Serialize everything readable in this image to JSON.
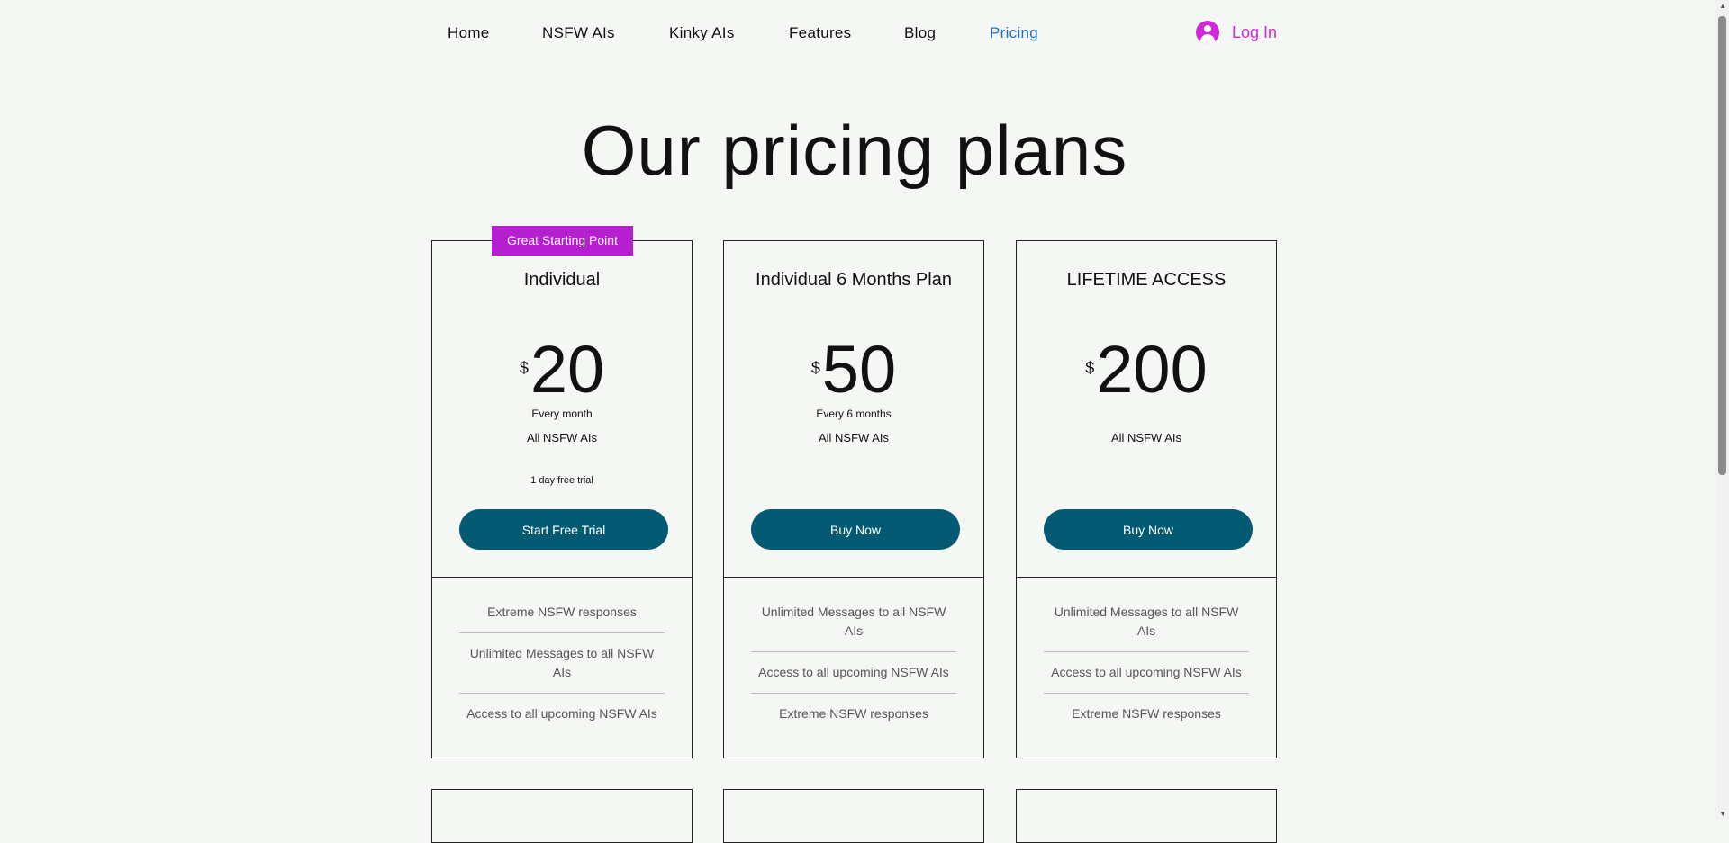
{
  "nav": {
    "items": [
      {
        "label": "Home"
      },
      {
        "label": "NSFW AIs"
      },
      {
        "label": "Kinky AIs"
      },
      {
        "label": "Features"
      },
      {
        "label": "Blog"
      },
      {
        "label": "Pricing",
        "active": true
      }
    ],
    "login_label": "Log In",
    "accent": "#d02ad8"
  },
  "title": "Our pricing plans",
  "badge": "Great Starting Point",
  "plans": [
    {
      "name": "Individual",
      "currency": "$",
      "price": "20",
      "frequency": "Every month",
      "description": "All NSFW AIs",
      "note": "1 day free trial",
      "button": "Start Free Trial",
      "features": [
        "Extreme NSFW responses",
        "Unlimited Messages to all NSFW AIs",
        "Access to all upcoming NSFW AIs"
      ]
    },
    {
      "name": "Individual 6 Months Plan",
      "currency": "$",
      "price": "50",
      "frequency": "Every 6 months",
      "description": "All NSFW AIs",
      "button": "Buy Now",
      "features": [
        "Unlimited Messages to all NSFW AIs",
        "Access to all upcoming NSFW AIs",
        "Extreme NSFW responses"
      ]
    },
    {
      "name": "LIFETIME ACCESS",
      "currency": "$",
      "price": "200",
      "description": "All NSFW AIs",
      "button": "Buy Now",
      "features": [
        "Unlimited Messages to all NSFW AIs",
        "Access to all upcoming NSFW AIs",
        "Extreme NSFW responses"
      ]
    }
  ],
  "colors": {
    "button": "#035a72",
    "badge": "#b51fd0",
    "active_nav": "#1e6fc4"
  }
}
